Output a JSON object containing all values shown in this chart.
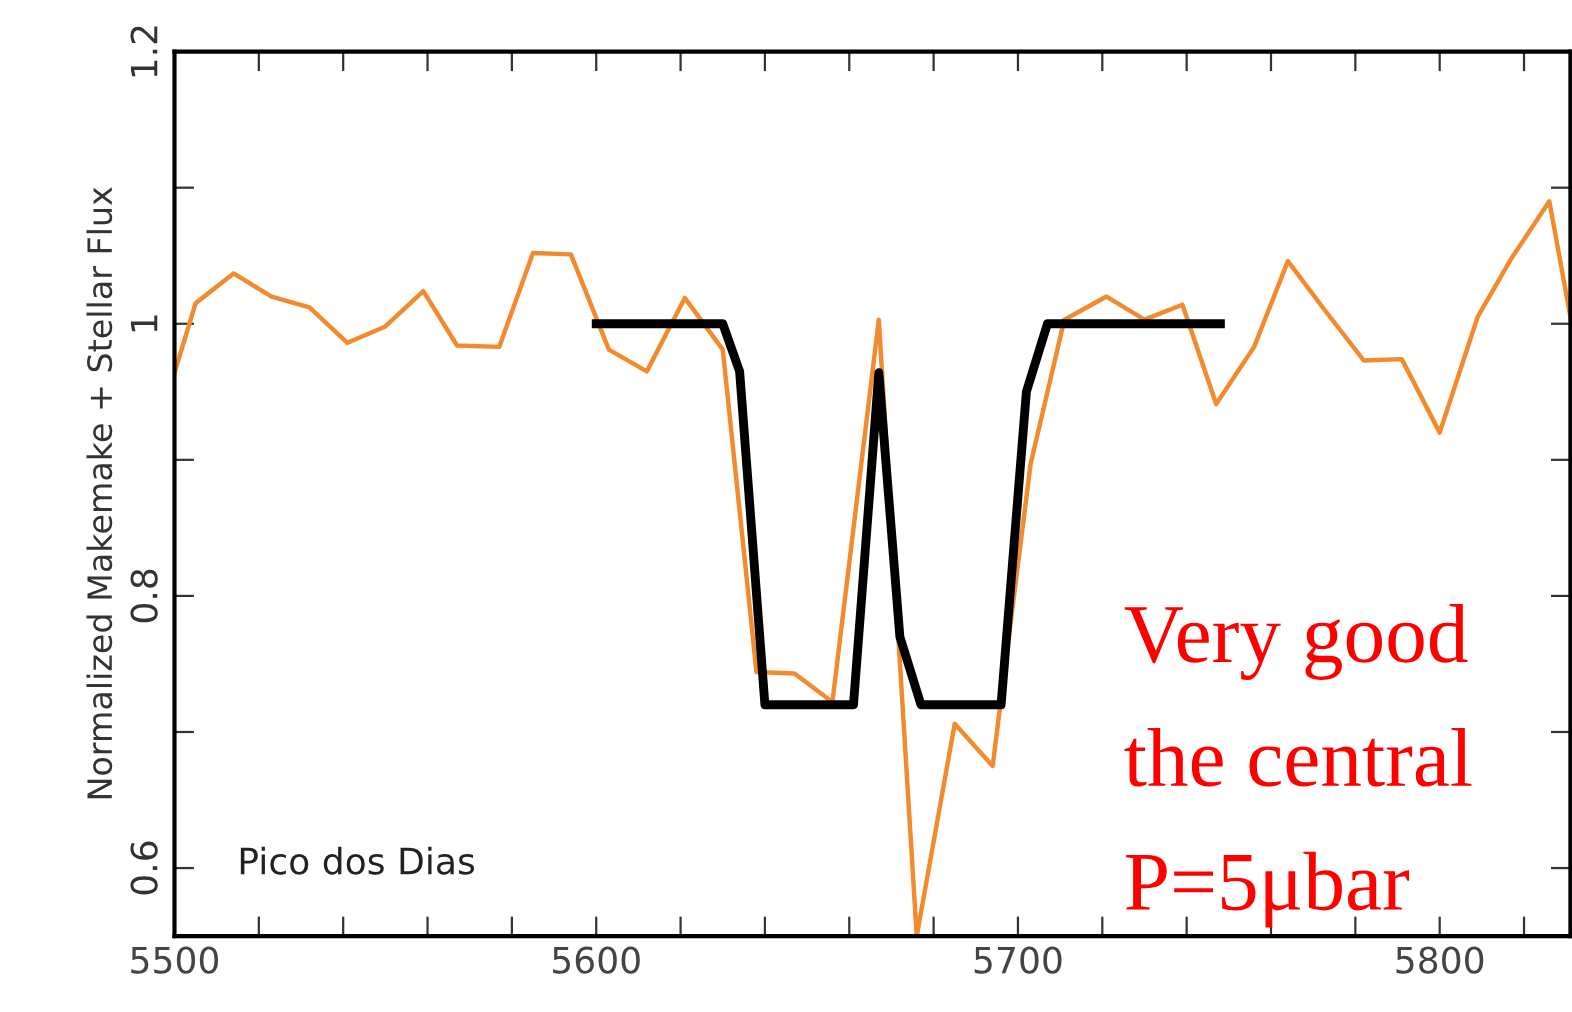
{
  "chart_data": {
    "type": "line",
    "ylabel": "Normalized Makemake + Stellar Flux",
    "xlim": [
      5500,
      5831
    ],
    "ylim": [
      0.55,
      1.2
    ],
    "xticks": [
      5500,
      {
        "value": 5520,
        "label": null
      },
      {
        "value": 5540,
        "label": null
      },
      {
        "value": 5560,
        "label": null
      },
      {
        "value": 5580,
        "label": null
      },
      5600,
      {
        "value": 5620,
        "label": null
      },
      {
        "value": 5640,
        "label": null
      },
      {
        "value": 5660,
        "label": null
      },
      {
        "value": 5680,
        "label": null
      },
      5700,
      {
        "value": 5720,
        "label": null
      },
      {
        "value": 5740,
        "label": null
      },
      {
        "value": 5760,
        "label": null
      },
      {
        "value": 5780,
        "label": null
      },
      5800,
      {
        "value": 5820,
        "label": null
      }
    ],
    "yticks": [
      {
        "value": 0.6,
        "label": "0.6"
      },
      {
        "value": 0.7,
        "label": null
      },
      {
        "value": 0.8,
        "label": "0.8"
      },
      {
        "value": 0.9,
        "label": null
      },
      {
        "value": 1,
        "label": "1"
      },
      {
        "value": 1.1,
        "label": null
      },
      {
        "value": 1.2,
        "label": "1.2"
      }
    ],
    "grid": false,
    "legend": false,
    "marker": "none",
    "series": [
      {
        "color": "#f28a2e",
        "line_style": "solid",
        "x": [
          5500,
          5505,
          5514,
          5523,
          5532,
          5541,
          5550,
          5559,
          5567,
          5577,
          5585,
          5594,
          5603,
          5612,
          5621,
          5630,
          5638,
          5647,
          5656,
          5667,
          5676,
          5685,
          5694,
          5703,
          5711,
          5721,
          5730,
          5739,
          5747,
          5756,
          5764,
          5773,
          5782,
          5791,
          5800,
          5809,
          5817,
          5826,
          5831
        ],
        "values": [
          0.964,
          1.015,
          1.037,
          1.02,
          1.012,
          0.986,
          0.998,
          1.024,
          0.984,
          0.983,
          1.052,
          1.051,
          0.981,
          0.965,
          1.019,
          0.981,
          0.744,
          0.743,
          0.722,
          1.003,
          0.55,
          0.706,
          0.675,
          0.897,
          1.003,
          1.02,
          1.003,
          1.014,
          0.941,
          0.983,
          1.046,
          1.009,
          0.973,
          0.974,
          0.92,
          1.005,
          1.048,
          1.09,
          1.005
        ]
      },
      {
        "color": "#000000",
        "line_style": "solid",
        "x": [
          5600,
          5630,
          5634,
          5640,
          5661,
          5667,
          5672,
          5677,
          5696,
          5702,
          5707,
          5748
        ],
        "values": [
          1.0,
          1.0,
          0.965,
          0.72,
          0.72,
          0.964,
          0.77,
          0.72,
          0.72,
          0.95,
          1.0,
          1.0
        ]
      }
    ],
    "annotations": [
      "Pico dos Dias",
      "Very good",
      "the central",
      "P=5μbar"
    ]
  }
}
